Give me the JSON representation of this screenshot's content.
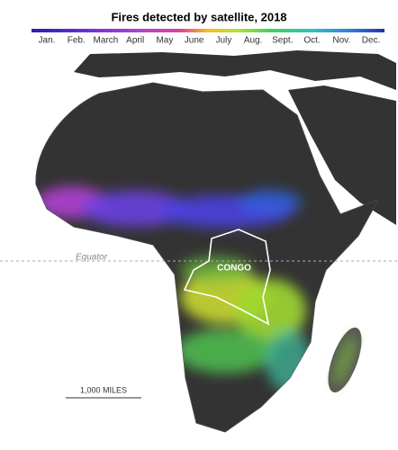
{
  "title": "Fires detected by satellite, 2018",
  "legend": {
    "months": [
      "Jan.",
      "Feb.",
      "March",
      "April",
      "May",
      "June",
      "July",
      "Aug.",
      "Sept.",
      "Oct.",
      "Nov.",
      "Dec."
    ]
  },
  "labels": {
    "equator": "Equator",
    "region": "CONGO",
    "scale": "1,000 MILES"
  }
}
